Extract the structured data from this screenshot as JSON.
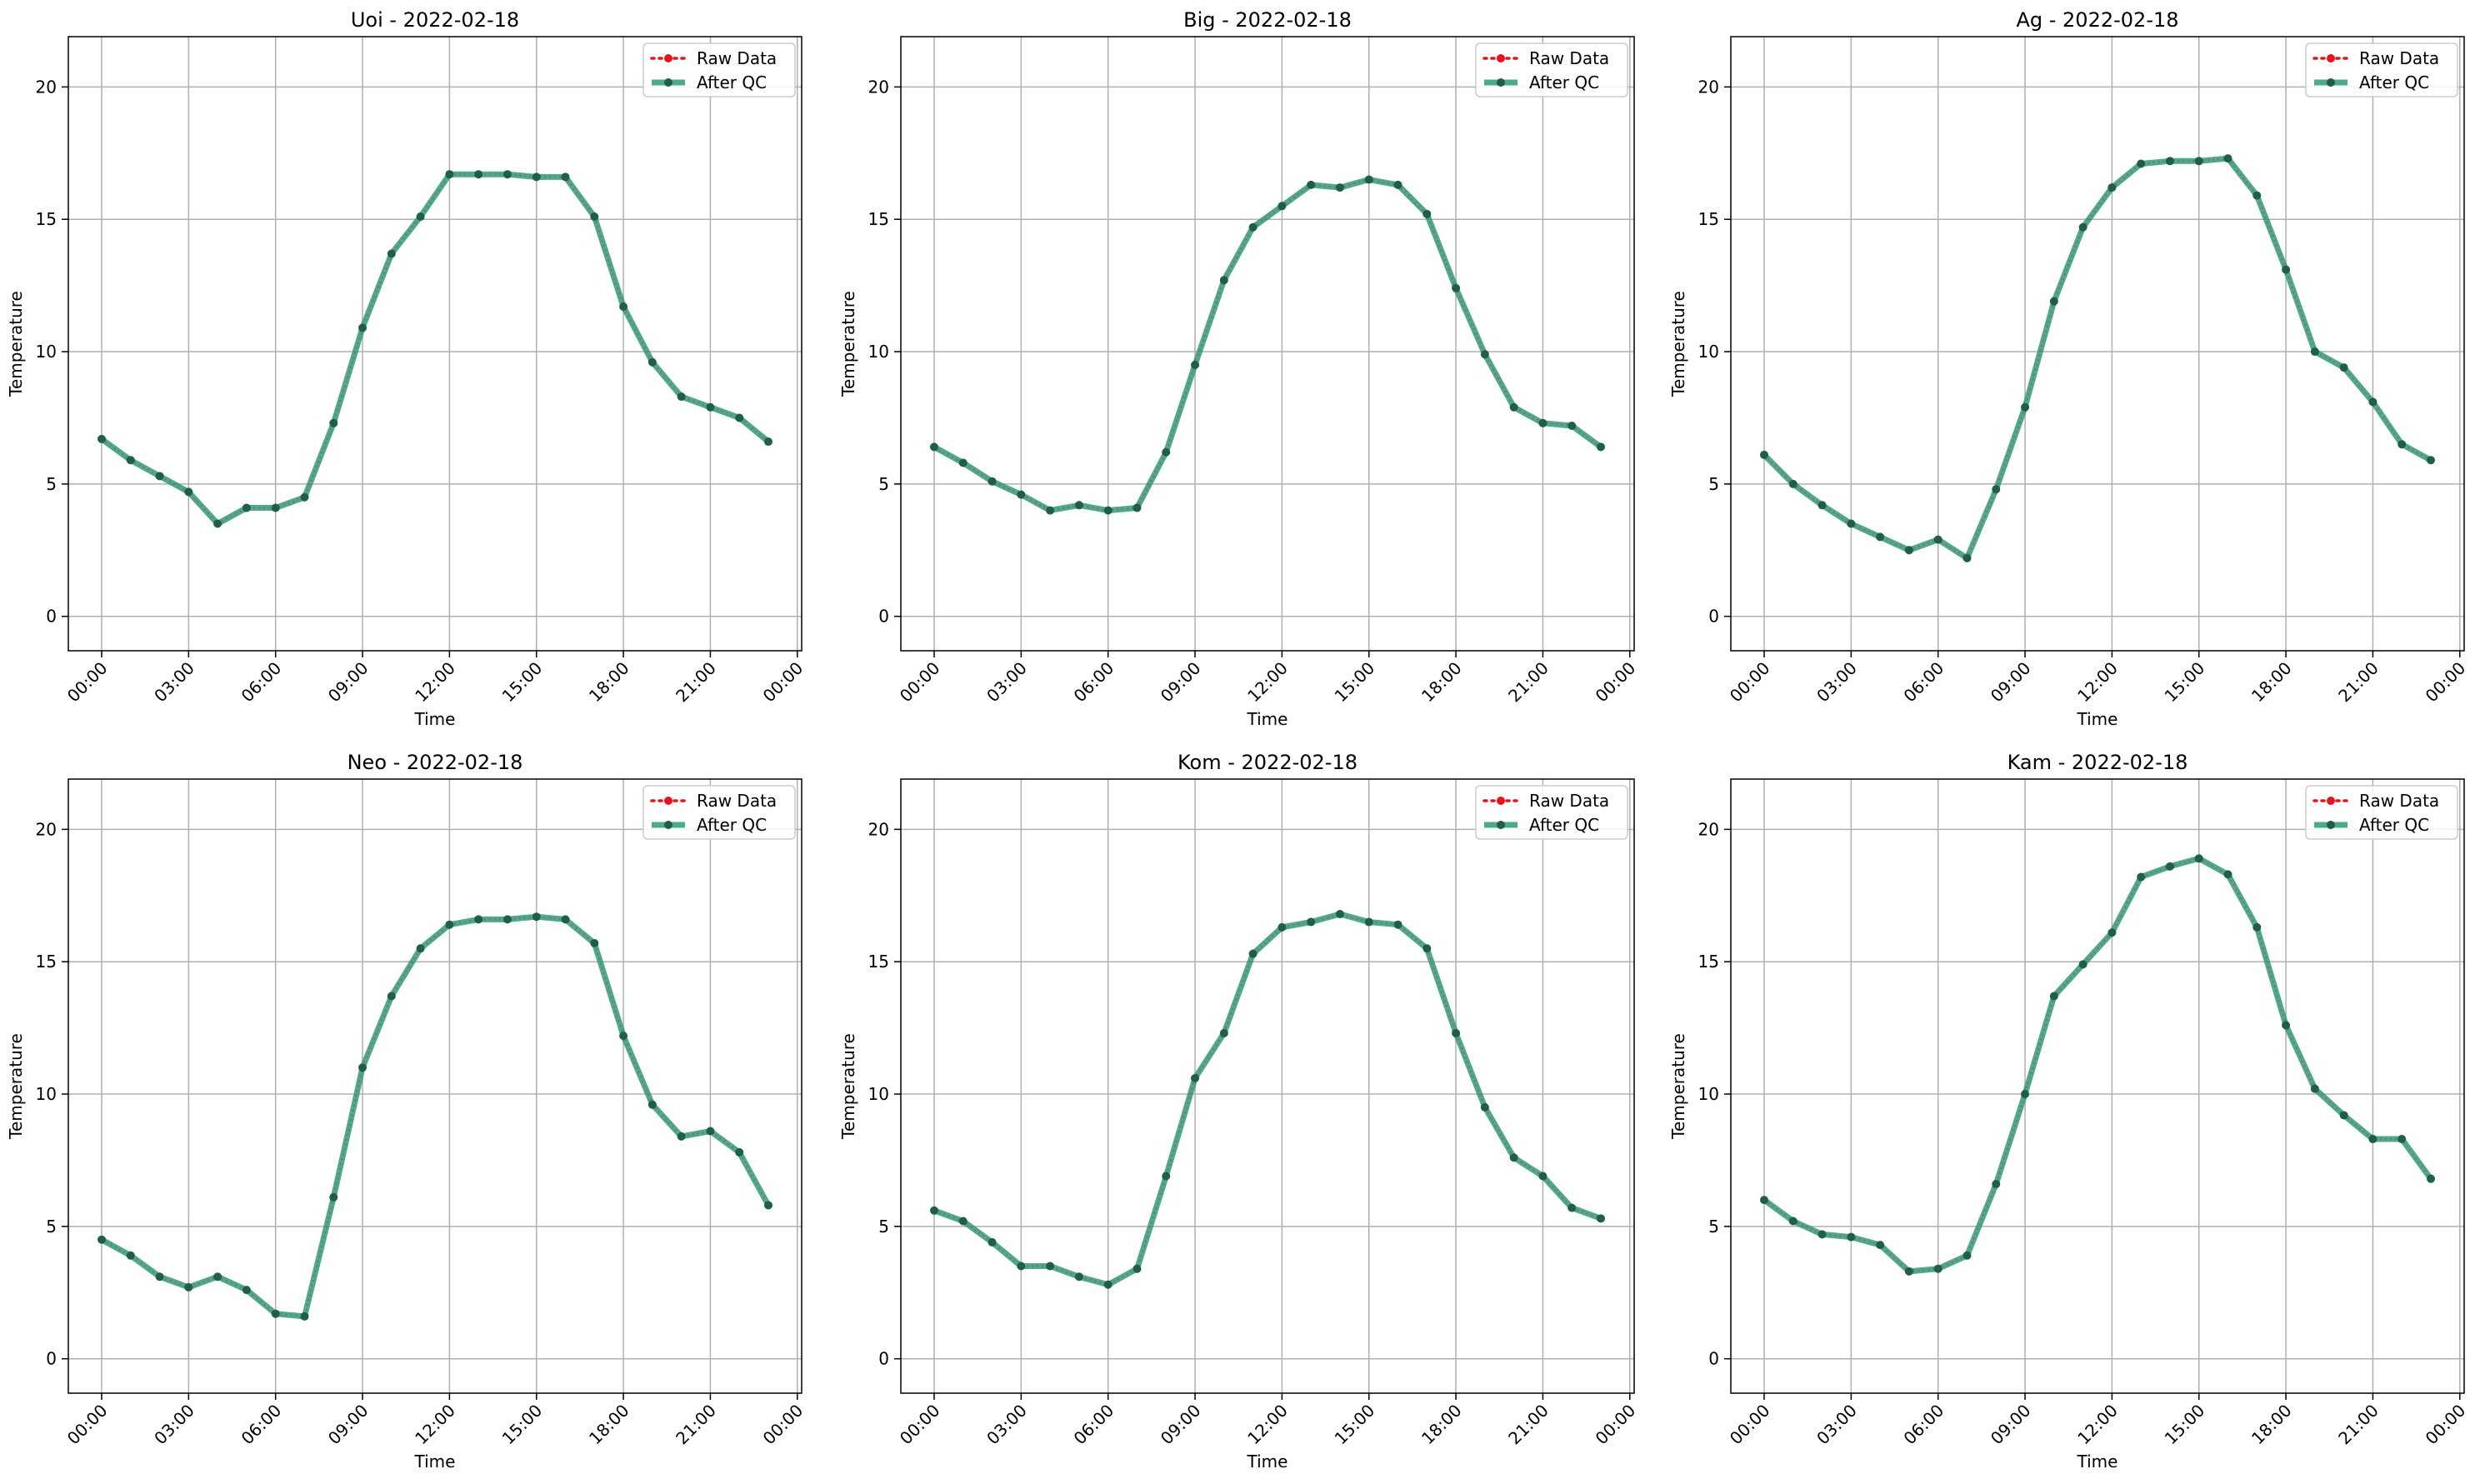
{
  "colors": {
    "raw": "#e8141c",
    "after_qc": "#2e9b78",
    "marker": "#1f5f4a",
    "grid": "#b0b0b0"
  },
  "legend": {
    "raw_label": "Raw Data",
    "qc_label": "After QC",
    "placement": "upper-right"
  },
  "chart_data": [
    {
      "type": "line",
      "title": "Uoi - 2022-02-18",
      "xlabel": "Time",
      "ylabel": "Temperature",
      "ylim": [
        -1.3,
        21.9
      ],
      "yticks": [
        0,
        5,
        10,
        15,
        20
      ],
      "xtick_labels": [
        "00:00",
        "03:00",
        "06:00",
        "09:00",
        "12:00",
        "15:00",
        "18:00",
        "21:00",
        "00:00"
      ],
      "grid": true,
      "x_hours": [
        0,
        1,
        2,
        3,
        4,
        5,
        6,
        7,
        8,
        9,
        10,
        11,
        12,
        13,
        14,
        15,
        16,
        17,
        18,
        19,
        20,
        21,
        22,
        23
      ],
      "series": [
        {
          "name": "Raw Data",
          "values": [
            6.7,
            5.9,
            5.3,
            4.7,
            3.5,
            4.1,
            4.1,
            4.5,
            7.3,
            10.9,
            13.7,
            15.1,
            16.7,
            16.7,
            16.7,
            16.6,
            16.6,
            15.1,
            11.7,
            9.6,
            8.3,
            7.9,
            7.5,
            6.6
          ]
        },
        {
          "name": "After QC",
          "values": [
            6.7,
            5.9,
            5.3,
            4.7,
            3.5,
            4.1,
            4.1,
            4.5,
            7.3,
            10.9,
            13.7,
            15.1,
            16.7,
            16.7,
            16.7,
            16.6,
            16.6,
            15.1,
            11.7,
            9.6,
            8.3,
            7.9,
            7.5,
            6.6
          ]
        }
      ]
    },
    {
      "type": "line",
      "title": "Big - 2022-02-18",
      "xlabel": "Time",
      "ylabel": "Temperature",
      "ylim": [
        -1.3,
        21.9
      ],
      "yticks": [
        0,
        5,
        10,
        15,
        20
      ],
      "xtick_labels": [
        "00:00",
        "03:00",
        "06:00",
        "09:00",
        "12:00",
        "15:00",
        "18:00",
        "21:00",
        "00:00"
      ],
      "grid": true,
      "x_hours": [
        0,
        1,
        2,
        3,
        4,
        5,
        6,
        7,
        8,
        9,
        10,
        11,
        12,
        13,
        14,
        15,
        16,
        17,
        18,
        19,
        20,
        21,
        22,
        23
      ],
      "series": [
        {
          "name": "Raw Data",
          "values": [
            6.4,
            5.8,
            5.1,
            4.6,
            4.0,
            4.2,
            4.0,
            4.1,
            6.2,
            9.5,
            12.7,
            14.7,
            15.5,
            16.3,
            16.2,
            16.5,
            16.3,
            15.2,
            12.4,
            9.9,
            7.9,
            7.3,
            7.2,
            6.4
          ]
        },
        {
          "name": "After QC",
          "values": [
            6.4,
            5.8,
            5.1,
            4.6,
            4.0,
            4.2,
            4.0,
            4.1,
            6.2,
            9.5,
            12.7,
            14.7,
            15.5,
            16.3,
            16.2,
            16.5,
            16.3,
            15.2,
            12.4,
            9.9,
            7.9,
            7.3,
            7.2,
            6.4
          ]
        }
      ]
    },
    {
      "type": "line",
      "title": "Ag - 2022-02-18",
      "xlabel": "Time",
      "ylabel": "Temperature",
      "ylim": [
        -1.3,
        21.9
      ],
      "yticks": [
        0,
        5,
        10,
        15,
        20
      ],
      "xtick_labels": [
        "00:00",
        "03:00",
        "06:00",
        "09:00",
        "12:00",
        "15:00",
        "18:00",
        "21:00",
        "00:00"
      ],
      "grid": true,
      "x_hours": [
        0,
        1,
        2,
        3,
        4,
        5,
        6,
        7,
        8,
        9,
        10,
        11,
        12,
        13,
        14,
        15,
        16,
        17,
        18,
        19,
        20,
        21,
        22,
        23
      ],
      "series": [
        {
          "name": "Raw Data",
          "values": [
            6.1,
            5.0,
            4.2,
            3.5,
            3.0,
            2.5,
            2.9,
            2.2,
            4.8,
            7.9,
            11.9,
            14.7,
            16.2,
            17.1,
            17.2,
            17.2,
            17.3,
            15.9,
            13.1,
            10.0,
            9.4,
            8.1,
            6.5,
            5.9
          ]
        },
        {
          "name": "After QC",
          "values": [
            6.1,
            5.0,
            4.2,
            3.5,
            3.0,
            2.5,
            2.9,
            2.2,
            4.8,
            7.9,
            11.9,
            14.7,
            16.2,
            17.1,
            17.2,
            17.2,
            17.3,
            15.9,
            13.1,
            10.0,
            9.4,
            8.1,
            6.5,
            5.9
          ]
        }
      ]
    },
    {
      "type": "line",
      "title": "Neo - 2022-02-18",
      "xlabel": "Time",
      "ylabel": "Temperature",
      "ylim": [
        -1.3,
        21.9
      ],
      "yticks": [
        0,
        5,
        10,
        15,
        20
      ],
      "xtick_labels": [
        "00:00",
        "03:00",
        "06:00",
        "09:00",
        "12:00",
        "15:00",
        "18:00",
        "21:00",
        "00:00"
      ],
      "grid": true,
      "x_hours": [
        0,
        1,
        2,
        3,
        4,
        5,
        6,
        7,
        8,
        9,
        10,
        11,
        12,
        13,
        14,
        15,
        16,
        17,
        18,
        19,
        20,
        21,
        22,
        23
      ],
      "series": [
        {
          "name": "Raw Data",
          "values": [
            4.5,
            3.9,
            3.1,
            2.7,
            3.1,
            2.6,
            1.7,
            1.6,
            6.1,
            11.0,
            13.7,
            15.5,
            16.4,
            16.6,
            16.6,
            16.7,
            16.6,
            15.7,
            12.2,
            9.6,
            8.4,
            8.6,
            7.8,
            5.8
          ]
        },
        {
          "name": "After QC",
          "values": [
            4.5,
            3.9,
            3.1,
            2.7,
            3.1,
            2.6,
            1.7,
            1.6,
            6.1,
            11.0,
            13.7,
            15.5,
            16.4,
            16.6,
            16.6,
            16.7,
            16.6,
            15.7,
            12.2,
            9.6,
            8.4,
            8.6,
            7.8,
            5.8
          ]
        }
      ]
    },
    {
      "type": "line",
      "title": "Kom - 2022-02-18",
      "xlabel": "Time",
      "ylabel": "Temperature",
      "ylim": [
        -1.3,
        21.9
      ],
      "yticks": [
        0,
        5,
        10,
        15,
        20
      ],
      "xtick_labels": [
        "00:00",
        "03:00",
        "06:00",
        "09:00",
        "12:00",
        "15:00",
        "18:00",
        "21:00",
        "00:00"
      ],
      "grid": true,
      "x_hours": [
        0,
        1,
        2,
        3,
        4,
        5,
        6,
        7,
        8,
        9,
        10,
        11,
        12,
        13,
        14,
        15,
        16,
        17,
        18,
        19,
        20,
        21,
        22,
        23
      ],
      "series": [
        {
          "name": "Raw Data",
          "values": [
            5.6,
            5.2,
            4.4,
            3.5,
            3.5,
            3.1,
            2.8,
            3.4,
            6.9,
            10.6,
            12.3,
            15.3,
            16.3,
            16.5,
            16.8,
            16.5,
            16.4,
            15.5,
            12.3,
            9.5,
            7.6,
            6.9,
            5.7,
            5.3
          ]
        },
        {
          "name": "After QC",
          "values": [
            5.6,
            5.2,
            4.4,
            3.5,
            3.5,
            3.1,
            2.8,
            3.4,
            6.9,
            10.6,
            12.3,
            15.3,
            16.3,
            16.5,
            16.8,
            16.5,
            16.4,
            15.5,
            12.3,
            9.5,
            7.6,
            6.9,
            5.7,
            5.3
          ]
        }
      ]
    },
    {
      "type": "line",
      "title": "Kam - 2022-02-18",
      "xlabel": "Time",
      "ylabel": "Temperature",
      "ylim": [
        -1.3,
        21.9
      ],
      "yticks": [
        0,
        5,
        10,
        15,
        20
      ],
      "xtick_labels": [
        "00:00",
        "03:00",
        "06:00",
        "09:00",
        "12:00",
        "15:00",
        "18:00",
        "21:00",
        "00:00"
      ],
      "grid": true,
      "x_hours": [
        0,
        1,
        2,
        3,
        4,
        5,
        6,
        7,
        8,
        9,
        10,
        11,
        12,
        13,
        14,
        15,
        16,
        17,
        18,
        19,
        20,
        21,
        22,
        23
      ],
      "series": [
        {
          "name": "Raw Data",
          "values": [
            6.0,
            5.2,
            4.7,
            4.6,
            4.3,
            3.3,
            3.4,
            3.9,
            6.6,
            10.0,
            13.7,
            14.9,
            16.1,
            18.2,
            18.6,
            18.9,
            18.3,
            16.3,
            12.6,
            10.2,
            9.2,
            8.3,
            8.3,
            6.8
          ]
        },
        {
          "name": "After QC",
          "values": [
            6.0,
            5.2,
            4.7,
            4.6,
            4.3,
            3.3,
            3.4,
            3.9,
            6.6,
            10.0,
            13.7,
            14.9,
            16.1,
            18.2,
            18.6,
            18.9,
            18.3,
            16.3,
            12.6,
            10.2,
            9.2,
            8.3,
            8.3,
            6.8
          ]
        }
      ]
    }
  ]
}
